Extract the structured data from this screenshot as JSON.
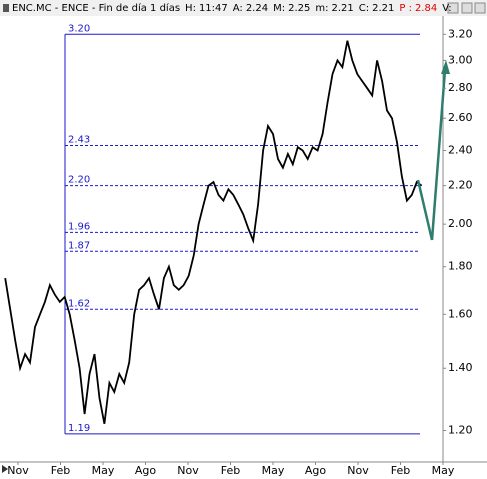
{
  "header": {
    "title": "ENC.MC - ENCE - Fin de día 1 días",
    "fields": [
      {
        "label": "H:",
        "value": "11:47"
      },
      {
        "label": "A:",
        "value": "2.24"
      },
      {
        "label": "M:",
        "value": "2.25"
      },
      {
        "label": "m:",
        "value": "2.21"
      },
      {
        "label": "C:",
        "value": "2.21"
      },
      {
        "label": "P :",
        "value": "2.84",
        "color": "#e00000"
      },
      {
        "label": "V:",
        "value": ""
      }
    ]
  },
  "chart_data": {
    "type": "line",
    "log_scale": true,
    "color": "#000000",
    "x": [
      -0.9,
      -0.55,
      -0.2,
      0.15,
      0.5,
      0.85,
      1.2,
      1.55,
      1.9,
      2.25,
      2.6,
      2.95,
      3.3,
      3.65,
      4.0,
      4.35,
      4.7,
      5.05,
      5.4,
      5.75,
      6.1,
      6.45,
      6.8,
      7.15,
      7.5,
      7.85,
      8.2,
      8.55,
      8.9,
      9.25,
      9.6,
      9.95,
      10.3,
      10.65,
      11.0,
      11.35,
      11.7,
      12.05,
      12.4,
      12.75,
      13.1,
      13.45,
      13.8,
      14.15,
      14.5,
      14.85,
      15.2,
      15.55,
      15.9,
      16.25,
      16.6,
      16.95,
      17.3,
      17.65,
      18.0,
      18.35,
      18.7,
      19.05,
      19.4,
      19.75,
      20.1,
      20.45,
      20.8,
      21.15,
      21.5,
      21.85,
      22.2,
      22.55,
      22.9,
      23.25,
      23.6,
      23.95,
      24.3,
      24.65,
      25.0,
      25.35,
      25.7,
      26.05,
      26.4,
      26.75,
      27.1,
      27.45,
      27.8,
      28.15,
      28.5
    ],
    "values": [
      1.75,
      1.62,
      1.5,
      1.4,
      1.45,
      1.42,
      1.55,
      1.6,
      1.65,
      1.72,
      1.68,
      1.65,
      1.67,
      1.6,
      1.5,
      1.4,
      1.25,
      1.38,
      1.45,
      1.3,
      1.22,
      1.35,
      1.32,
      1.38,
      1.35,
      1.42,
      1.6,
      1.7,
      1.72,
      1.75,
      1.68,
      1.62,
      1.75,
      1.8,
      1.72,
      1.7,
      1.72,
      1.76,
      1.85,
      2.0,
      2.1,
      2.2,
      2.22,
      2.15,
      2.12,
      2.18,
      2.15,
      2.1,
      2.05,
      1.98,
      1.92,
      2.1,
      2.4,
      2.55,
      2.5,
      2.35,
      2.3,
      2.38,
      2.32,
      2.42,
      2.4,
      2.35,
      2.42,
      2.4,
      2.5,
      2.7,
      2.9,
      3.0,
      2.95,
      3.15,
      3.0,
      2.9,
      2.85,
      2.8,
      2.75,
      3.0,
      2.85,
      2.65,
      2.6,
      2.45,
      2.25,
      2.12,
      2.15,
      2.22,
      2.2
    ],
    "xlim": [
      -1.27,
      30
    ],
    "xticks": [
      {
        "value": 0,
        "label": "Nov"
      },
      {
        "value": 3,
        "label": "Feb"
      },
      {
        "value": 6,
        "label": "May"
      },
      {
        "value": 9,
        "label": "Ago"
      },
      {
        "value": 12,
        "label": "Nov"
      },
      {
        "value": 15,
        "label": "Feb"
      },
      {
        "value": 18,
        "label": "May"
      },
      {
        "value": 21,
        "label": "Ago"
      },
      {
        "value": 24,
        "label": "Nov"
      },
      {
        "value": 27,
        "label": "Feb"
      },
      {
        "value": 30,
        "label": "May"
      }
    ],
    "ylim": [
      1.11,
      3.34
    ],
    "yticks": [
      {
        "value": 1.2,
        "label": "1.20"
      },
      {
        "value": 1.4,
        "label": "1.40"
      },
      {
        "value": 1.6,
        "label": "1.60"
      },
      {
        "value": 1.8,
        "label": "1.80"
      },
      {
        "value": 2.0,
        "label": "2.00"
      },
      {
        "value": 2.2,
        "label": "2.20"
      },
      {
        "value": 2.4,
        "label": "2.40"
      },
      {
        "value": 2.6,
        "label": "2.60"
      },
      {
        "value": 2.8,
        "label": "2.80"
      },
      {
        "value": 3.0,
        "label": "3.00"
      },
      {
        "value": 3.2,
        "label": "3.20"
      }
    ],
    "levels": [
      {
        "value": 3.2,
        "label": "3.20",
        "style": "solid"
      },
      {
        "value": 2.43,
        "label": "2.43",
        "style": "dashed"
      },
      {
        "value": 2.2,
        "label": "2.20",
        "style": "dashed"
      },
      {
        "value": 1.96,
        "label": "1.96",
        "style": "dashed"
      },
      {
        "value": 1.87,
        "label": "1.87",
        "style": "dashed"
      },
      {
        "value": 1.62,
        "label": "1.62",
        "style": "dashed"
      },
      {
        "value": 1.19,
        "label": "1.19",
        "style": "solid"
      }
    ],
    "level_color": "#1a1acc"
  }
}
